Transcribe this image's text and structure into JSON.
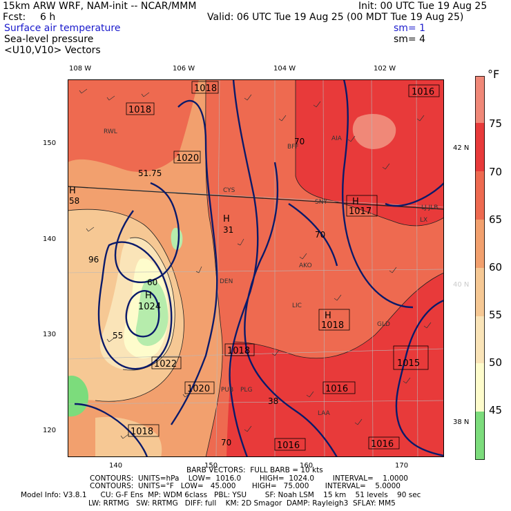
{
  "header": {
    "model_line": "15km ARW WRF, NAM-init -- NCAR/MMM",
    "init_line": "Init: 00 UTC Tue 19 Aug 25",
    "fcst_label": "Fcst:",
    "fcst_value": "6 h",
    "valid_line": "Valid: 06 UTC Tue 19 Aug 25 (00 MDT Tue 19 Aug 25)",
    "field1": "Surface air temperature",
    "field1_sm": "sm= 1",
    "field2": "Sea-level pressure",
    "field2_sm": "sm= 4",
    "field3": "<U10,V10> Vectors"
  },
  "colorbar": {
    "unit": "°F",
    "labels": [
      "75",
      "70",
      "65",
      "60",
      "55",
      "50",
      "45"
    ],
    "colors": [
      "#f08878",
      "#e83a3a",
      "#ee6a50",
      "#f2a06e",
      "#f6c894",
      "#fae4b8",
      "#fefccc",
      "#b6ecac",
      "#7cdc7c"
    ]
  },
  "axes": {
    "lon_labels": [
      "108 W",
      "106 W",
      "104 W",
      "102 W"
    ],
    "lat_labels": [
      "42 N",
      "40 N",
      "38 N"
    ],
    "grid_x_labels": [
      "140",
      "150",
      "160",
      "170"
    ],
    "grid_y_labels": [
      "150",
      "140",
      "130",
      "120"
    ]
  },
  "map_labels": {
    "pressure": [
      "1018",
      "1018",
      "1016",
      "1020",
      "1017",
      "1018",
      "1022",
      "1018",
      "1020",
      "1016",
      "1018",
      "1015",
      "1016",
      "1016",
      "1024"
    ],
    "highs": [
      "H",
      "H",
      "H",
      "H",
      "H"
    ],
    "temps": [
      "51.75",
      "58",
      "70",
      "31",
      "60",
      "55",
      "70",
      "96",
      "38",
      "70"
    ],
    "stations": [
      "RWL",
      "BFF",
      "AIA",
      "SNY",
      "CYS",
      "AKO",
      "DEN",
      "LIC",
      "GLD",
      "PUB",
      "LAA",
      "LJ JLB",
      "LX",
      "PLG"
    ]
  },
  "footer": {
    "barb_line": "BARB VECTORS:  FULL BARB = 10 kts",
    "contours1": "CONTOURS:  UNITS=hPa    LOW=  1016.0        HIGH=  1024.0        INTERVAL=    1.0000",
    "contours2": "CONTOURS:  UNITS=°F   LOW=   45.000       HIGH=   75.000       INTERVAL=    5.0000",
    "model_info1": "Model Info: V3.8.1      CU: G-F Ens  MP: WDM 6class   PBL: YSU        SF: Noah LSM    15 km    51 levels    90 sec",
    "model_info2": "LW: RRTMG   SW: RRTMG   DIFF: full    KM: 2D Smagor  DAMP: Rayleigh3  SFLAY: MM5"
  }
}
